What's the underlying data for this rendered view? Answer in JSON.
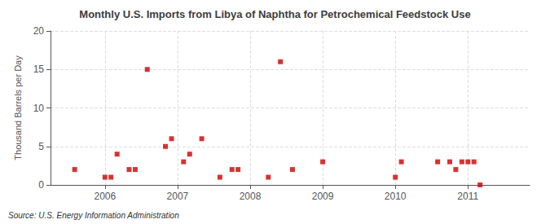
{
  "chart_data": {
    "type": "scatter",
    "title": "Monthly U.S. Imports from Libya of Naphtha for Petrochemical Feedstock Use",
    "ylabel": "Thousand Barrels per Day",
    "source": "Source: U.S. Energy Information Administration",
    "color": "#cc0000",
    "marker": "square",
    "x": [
      2005.583,
      2006.0,
      2006.083,
      2006.167,
      2006.333,
      2006.417,
      2006.583,
      2006.833,
      2006.917,
      2007.083,
      2007.167,
      2007.333,
      2007.583,
      2007.75,
      2007.833,
      2008.25,
      2008.417,
      2008.583,
      2009.0,
      2010.0,
      2010.083,
      2010.583,
      2010.75,
      2010.833,
      2010.917,
      2011.0,
      2011.083,
      2011.167
    ],
    "values": [
      2,
      1,
      1,
      4,
      2,
      2,
      15,
      5,
      6,
      3,
      4,
      6,
      1,
      2,
      2,
      1,
      16,
      2,
      3,
      1,
      3,
      3,
      3,
      2,
      3,
      3,
      3,
      0
    ],
    "xlim": [
      2005.25,
      2011.85
    ],
    "xticks": [
      2006,
      2007,
      2008,
      2009,
      2010,
      2011
    ],
    "ylim": [
      0,
      20
    ],
    "yticks": [
      0,
      5,
      10,
      15,
      20
    ],
    "grid": true
  }
}
